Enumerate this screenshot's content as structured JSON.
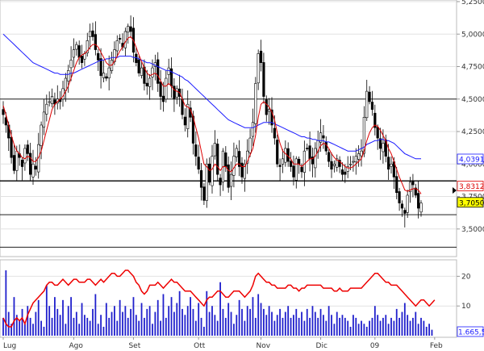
{
  "chart_data": [
    {
      "type": "candlestick",
      "title": "",
      "ylim": [
        3.3,
        5.25
      ],
      "y_ticks": [
        "5,2500",
        "5,0000",
        "4,7500",
        "4,5000",
        "4,2500",
        "4,0000",
        "3,7500",
        "3,5000"
      ],
      "y_tick_values": [
        5.25,
        5.0,
        4.75,
        4.5,
        4.25,
        4.0,
        3.75,
        3.5
      ],
      "x_labels": [
        {
          "label": "Lug",
          "index": 0,
          "color": "#333333"
        },
        {
          "label": "Ago",
          "index": 26,
          "color": "#333333"
        },
        {
          "label": "Set",
          "index": 48,
          "color": "#333333"
        },
        {
          "label": "Ott",
          "index": 72,
          "color": "#333333"
        },
        {
          "label": "Nov",
          "index": 95,
          "color": "#333333"
        },
        {
          "label": "Dic",
          "index": 117,
          "color": "#333333"
        },
        {
          "label": "09",
          "index": 137,
          "color": "#cc0000"
        },
        {
          "label": "Feb",
          "index": 159,
          "color": "#333333"
        }
      ],
      "horizontal_lines": [
        4.5,
        3.87,
        3.61,
        3.36
      ],
      "badges": [
        {
          "value": 4.0391,
          "label": "4,0391",
          "bg": "#ffffff",
          "fg": "#1a1aff",
          "border": "#1a1aff"
        },
        {
          "value": 3.8312,
          "label": "3,8312",
          "bg": "#ffffff",
          "fg": "#dd0000",
          "border": "#dd0000"
        },
        {
          "value": 3.705,
          "label": "3,7050",
          "bg": "#ffff00",
          "fg": "#000000",
          "border": "#000000"
        }
      ],
      "close_series": [
        4.38,
        4.3,
        4.2,
        4.05,
        3.95,
        4.1,
        4.05,
        3.98,
        4.12,
        4.08,
        3.92,
        4.0,
        3.96,
        4.15,
        4.3,
        4.4,
        4.46,
        4.48,
        4.52,
        4.46,
        4.5,
        4.48,
        4.58,
        4.66,
        4.72,
        4.8,
        4.88,
        4.92,
        4.82,
        4.78,
        4.85,
        4.95,
        5.02,
        4.98,
        4.88,
        4.8,
        4.68,
        4.7,
        4.66,
        4.74,
        4.8,
        4.88,
        4.95,
        4.96,
        4.9,
        5.02,
        5.06,
        5.02,
        4.86,
        4.78,
        4.7,
        4.74,
        4.62,
        4.6,
        4.66,
        4.74,
        4.78,
        4.62,
        4.52,
        4.48,
        4.66,
        4.74,
        4.6,
        4.5,
        4.58,
        4.52,
        4.38,
        4.3,
        4.46,
        4.36,
        4.16,
        4.06,
        3.96,
        3.82,
        3.72,
        4.0,
        3.86,
        4.06,
        4.16,
        3.92,
        3.84,
        4.1,
        3.98,
        3.82,
        3.92,
        4.06,
        4.12,
        3.98,
        3.9,
        4.0,
        4.1,
        4.2,
        4.32,
        4.62,
        4.85,
        4.78,
        4.52,
        4.38,
        4.42,
        4.3,
        4.2,
        4.0,
        3.98,
        4.04,
        4.12,
        4.02,
        3.98,
        3.9,
        4.04,
        4.0,
        3.94,
        4.1,
        4.12,
        4.04,
        4.0,
        4.12,
        4.18,
        4.24,
        4.2,
        4.1,
        4.02,
        3.96,
        4.0,
        4.04,
        3.98,
        3.92,
        3.92,
        3.98,
        4.0,
        4.02,
        4.06,
        4.08,
        4.1,
        4.36,
        4.56,
        4.48,
        4.42,
        4.28,
        4.2,
        4.12,
        4.16,
        4.06,
        3.96,
        4.0,
        3.9,
        3.78,
        3.7,
        3.66,
        3.62,
        3.76,
        3.86,
        3.84,
        3.76,
        3.66,
        3.7
      ],
      "ma_short_series": [
        4.45,
        4.38,
        4.3,
        4.22,
        4.15,
        4.1,
        4.08,
        4.05,
        4.04,
        4.06,
        4.05,
        4.02,
        4.02,
        4.05,
        4.1,
        4.18,
        4.26,
        4.34,
        4.42,
        4.46,
        4.48,
        4.5,
        4.52,
        4.56,
        4.6,
        4.66,
        4.72,
        4.78,
        4.82,
        4.84,
        4.85,
        4.87,
        4.9,
        4.92,
        4.92,
        4.9,
        4.86,
        4.82,
        4.78,
        4.76,
        4.76,
        4.79,
        4.83,
        4.87,
        4.9,
        4.94,
        4.97,
        4.98,
        4.95,
        4.9,
        4.84,
        4.79,
        4.74,
        4.7,
        4.68,
        4.69,
        4.7,
        4.68,
        4.64,
        4.6,
        4.6,
        4.62,
        4.6,
        4.57,
        4.56,
        4.55,
        4.5,
        4.45,
        4.44,
        4.42,
        4.36,
        4.28,
        4.2,
        4.1,
        4.0,
        3.98,
        3.95,
        3.96,
        4.0,
        3.98,
        3.95,
        3.98,
        3.98,
        3.95,
        3.94,
        3.97,
        4.0,
        4.0,
        3.98,
        3.98,
        4.02,
        4.07,
        4.12,
        4.22,
        4.36,
        4.46,
        4.48,
        4.46,
        4.44,
        4.4,
        4.34,
        4.24,
        4.16,
        4.1,
        4.08,
        4.06,
        4.04,
        4.0,
        4.0,
        4.0,
        3.98,
        4.0,
        4.02,
        4.04,
        4.04,
        4.06,
        4.1,
        4.14,
        4.16,
        4.15,
        4.12,
        4.08,
        4.05,
        4.03,
        4.02,
        4.0,
        3.98,
        3.97,
        3.97,
        3.98,
        4.0,
        4.02,
        4.04,
        4.1,
        4.18,
        4.24,
        4.28,
        4.3,
        4.29,
        4.26,
        4.22,
        4.18,
        4.12,
        4.08,
        4.02,
        3.96,
        3.9,
        3.85,
        3.8,
        3.79,
        3.8,
        3.81,
        3.81,
        3.8,
        3.77
      ],
      "ma_long_series": [
        5.0,
        4.98,
        4.96,
        4.94,
        4.92,
        4.9,
        4.88,
        4.86,
        4.84,
        4.82,
        4.8,
        4.78,
        4.77,
        4.76,
        4.75,
        4.74,
        4.73,
        4.72,
        4.71,
        4.7,
        4.7,
        4.69,
        4.69,
        4.69,
        4.69,
        4.7,
        4.7,
        4.71,
        4.72,
        4.73,
        4.74,
        4.75,
        4.76,
        4.77,
        4.78,
        4.79,
        4.8,
        4.8,
        4.81,
        4.81,
        4.82,
        4.82,
        4.82,
        4.83,
        4.83,
        4.83,
        4.83,
        4.83,
        4.82,
        4.82,
        4.81,
        4.8,
        4.79,
        4.78,
        4.78,
        4.77,
        4.76,
        4.75,
        4.74,
        4.73,
        4.72,
        4.72,
        4.71,
        4.7,
        4.69,
        4.68,
        4.67,
        4.65,
        4.64,
        4.62,
        4.6,
        4.58,
        4.56,
        4.54,
        4.52,
        4.5,
        4.48,
        4.46,
        4.44,
        4.42,
        4.4,
        4.38,
        4.36,
        4.34,
        4.33,
        4.32,
        4.31,
        4.3,
        4.29,
        4.28,
        4.28,
        4.28,
        4.28,
        4.29,
        4.3,
        4.31,
        4.32,
        4.32,
        4.32,
        4.32,
        4.31,
        4.3,
        4.29,
        4.28,
        4.27,
        4.26,
        4.25,
        4.24,
        4.23,
        4.22,
        4.21,
        4.21,
        4.2,
        4.2,
        4.19,
        4.19,
        4.18,
        4.18,
        4.18,
        4.17,
        4.17,
        4.16,
        4.15,
        4.14,
        4.13,
        4.12,
        4.11,
        4.1,
        4.1,
        4.1,
        4.1,
        4.11,
        4.12,
        4.13,
        4.15,
        4.16,
        4.17,
        4.18,
        4.18,
        4.19,
        4.19,
        4.18,
        4.18,
        4.17,
        4.16,
        4.14,
        4.12,
        4.1,
        4.08,
        4.07,
        4.06,
        4.05,
        4.04,
        4.04,
        4.04
      ]
    },
    {
      "type": "bar+line",
      "title": "",
      "ylim": [
        0,
        25
      ],
      "y_ticks": [
        "20",
        "10"
      ],
      "y_tick_values": [
        20,
        10
      ],
      "last_value_label": "1.665,5",
      "bar_color": "#2020cc",
      "line_color": "#ee0000",
      "volume_values": [
        6,
        22,
        8,
        4,
        13,
        7,
        5,
        9,
        4,
        10,
        6,
        4,
        8,
        12,
        5,
        3,
        17,
        10,
        6,
        13,
        9,
        7,
        12,
        4,
        10,
        13,
        6,
        8,
        4,
        11,
        7,
        6,
        5,
        9,
        14,
        4,
        7,
        3,
        11,
        6,
        8,
        10,
        5,
        12,
        8,
        10,
        6,
        9,
        13,
        7,
        5,
        11,
        6,
        9,
        10,
        4,
        8,
        12,
        5,
        14,
        6,
        10,
        13,
        8,
        11,
        15,
        9,
        7,
        10,
        13,
        9,
        5,
        11,
        6,
        3,
        15,
        8,
        10,
        7,
        5,
        18,
        9,
        6,
        11,
        8,
        4,
        7,
        12,
        9,
        5,
        10,
        9,
        13,
        6,
        14,
        11,
        9,
        7,
        10,
        8,
        5,
        7,
        9,
        6,
        8,
        10,
        6,
        7,
        9,
        6,
        8,
        5,
        9,
        6,
        10,
        8,
        6,
        9,
        7,
        5,
        10,
        7,
        4,
        8,
        6,
        7,
        6,
        5,
        3,
        7,
        6,
        4,
        5,
        4,
        3,
        5,
        6,
        10,
        7,
        5,
        6,
        7,
        4,
        6,
        5,
        9,
        6,
        8,
        11,
        7,
        5,
        6,
        8,
        4,
        6,
        5,
        3,
        4,
        2
      ],
      "line_values": [
        6,
        4,
        3,
        3,
        5,
        6,
        5,
        6,
        4,
        7,
        9,
        11,
        12,
        13,
        14,
        15,
        17,
        18,
        18,
        17,
        17,
        18,
        19,
        18,
        17,
        18,
        19,
        19,
        18,
        18,
        18,
        19,
        19,
        18,
        17,
        18,
        19,
        18,
        19,
        20,
        21,
        21,
        20,
        20,
        21,
        22,
        22,
        21,
        20,
        18,
        17,
        15,
        14,
        15,
        17,
        17,
        17,
        18,
        17,
        16,
        17,
        18,
        19,
        18,
        18,
        17,
        16,
        15,
        15,
        15,
        14,
        13,
        12,
        11,
        10,
        12,
        13,
        13,
        14,
        15,
        15,
        14,
        13,
        13,
        14,
        15,
        15,
        15,
        14,
        13,
        14,
        15,
        17,
        20,
        21,
        20,
        19,
        18,
        18,
        17,
        17,
        16,
        16,
        16,
        16,
        17,
        17,
        16,
        16,
        15,
        16,
        16,
        17,
        17,
        17,
        17,
        17,
        17,
        16,
        16,
        16,
        16,
        15,
        15,
        16,
        15,
        15,
        15,
        16,
        16,
        16,
        16,
        16,
        17,
        18,
        19,
        20,
        21,
        21,
        20,
        19,
        18,
        18,
        17,
        17,
        17,
        16,
        15,
        14,
        13,
        12,
        11,
        10,
        11,
        12,
        12,
        11,
        10,
        11,
        12
      ]
    }
  ]
}
